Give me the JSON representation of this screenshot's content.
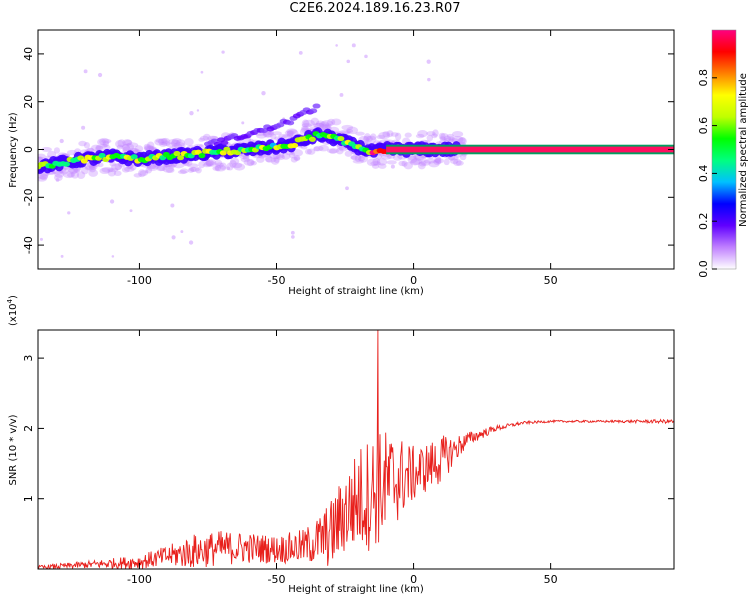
{
  "page": {
    "title": "C2E6.2024.189.16.23.R07"
  },
  "chart_data": [
    {
      "type": "heatmap",
      "title": "C2E6.2024.189.16.23.R07",
      "xlabel": "Height of straight line (km)",
      "ylabel": "Frequency (Hz)",
      "xlim": [
        -137,
        95
      ],
      "ylim": [
        -50,
        50
      ],
      "xticks": [
        -100,
        -50,
        0,
        50
      ],
      "yticks": [
        -40,
        -20,
        0,
        20,
        40
      ],
      "ridge": {
        "x": [
          -137,
          -130,
          -120,
          -110,
          -100,
          -90,
          -80,
          -70,
          -60,
          -50,
          -45,
          -40,
          -35,
          -30,
          -25,
          -20,
          -15,
          -10,
          -5,
          0,
          5,
          10,
          15,
          95
        ],
        "y": [
          -7,
          -6,
          -4,
          -3,
          -4,
          -3,
          -2,
          -1,
          0,
          1,
          2,
          4,
          6,
          5,
          3,
          1,
          -1,
          0,
          0,
          0,
          0,
          0,
          0,
          0
        ]
      },
      "upper_branch": {
        "x": [
          -75,
          -65,
          -55,
          -50,
          -45,
          -40,
          -35
        ],
        "y": [
          2,
          5,
          8,
          10,
          12,
          15,
          18
        ]
      },
      "saturated_band": {
        "x_start": -10,
        "x_end": 95,
        "y": 0
      },
      "colorbar": {
        "label": "Normalized spectral amplitude",
        "min": 0.0,
        "max": 1.0,
        "ticks": [
          "0.0",
          "0.2",
          "0.4",
          "0.6",
          "0.8"
        ],
        "colors": [
          "#ffffff",
          "#c080ff",
          "#6000ff",
          "#0000ff",
          "#00c0ff",
          "#00ff80",
          "#00ff00",
          "#c0ff00",
          "#ffff00",
          "#ff8000",
          "#ff0000",
          "#ff0080"
        ]
      }
    },
    {
      "type": "line",
      "xlabel": "Height of straight line (km)",
      "ylabel": "SNR (10 * v/v)",
      "multiplier_label": "(x10",
      "multiplier_exp": "4",
      "multiplier_close": ")",
      "xlim": [
        -137,
        95
      ],
      "ylim": [
        0,
        3.4
      ],
      "xticks": [
        -100,
        -50,
        0,
        50
      ],
      "yticks": [
        1,
        2,
        3
      ],
      "line_color": "#e8201c",
      "envelope": {
        "x": [
          -137,
          -120,
          -100,
          -90,
          -80,
          -70,
          -60,
          -50,
          -40,
          -35,
          -30,
          -25,
          -20,
          -15,
          -10,
          -5,
          0,
          5,
          10,
          15,
          20,
          30,
          40,
          50,
          60,
          70,
          80,
          95
        ],
        "mean": [
          0.02,
          0.06,
          0.1,
          0.18,
          0.25,
          0.3,
          0.3,
          0.28,
          0.32,
          0.4,
          0.5,
          0.8,
          1.0,
          1.1,
          1.2,
          1.3,
          1.35,
          1.45,
          1.55,
          1.7,
          1.85,
          2.0,
          2.08,
          2.1,
          2.1,
          2.1,
          2.1,
          2.1
        ],
        "amp": [
          0.03,
          0.05,
          0.1,
          0.15,
          0.25,
          0.25,
          0.22,
          0.2,
          0.25,
          0.35,
          0.5,
          0.6,
          0.75,
          0.85,
          0.8,
          0.6,
          0.4,
          0.35,
          0.35,
          0.2,
          0.1,
          0.04,
          0.02,
          0.015,
          0.015,
          0.015,
          0.02,
          0.03
        ]
      },
      "spike": {
        "x": -13,
        "y": 3.4
      }
    }
  ]
}
